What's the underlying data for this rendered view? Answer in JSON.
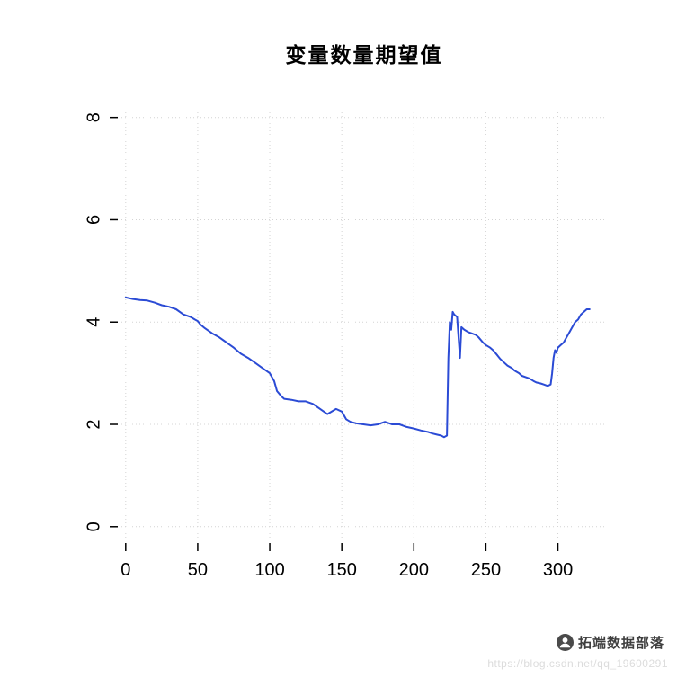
{
  "title": "变量数量期望值",
  "watermark": {
    "brand": "拓端数据部落",
    "logo_icon": "person-in-circle-icon",
    "url": "https://blog.csdn.net/qq_19600291"
  },
  "chart_data": {
    "type": "line",
    "title": "变量数量期望值",
    "xlabel": "",
    "ylabel": "",
    "xlim": [
      -3,
      334
    ],
    "ylim": [
      -0.25,
      8.1
    ],
    "x_ticks": [
      0,
      50,
      100,
      150,
      200,
      250,
      300
    ],
    "y_ticks": [
      0,
      2,
      4,
      6,
      8
    ],
    "grid": "dotted",
    "grid_color": "#d4d4d4",
    "tick_color": "#000000",
    "line_color": "#2b4bd5",
    "legend": "none",
    "series": [
      {
        "name": "变量数量期望值",
        "x": [
          0,
          5,
          10,
          15,
          20,
          25,
          30,
          35,
          40,
          45,
          48,
          50,
          52,
          55,
          60,
          65,
          70,
          75,
          80,
          85,
          90,
          95,
          100,
          103,
          105,
          108,
          110,
          115,
          120,
          125,
          130,
          135,
          140,
          143,
          146,
          150,
          153,
          156,
          160,
          165,
          170,
          175,
          180,
          185,
          190,
          195,
          200,
          205,
          210,
          213,
          216,
          219,
          221,
          223,
          224,
          225,
          226,
          227,
          228,
          230,
          232,
          233,
          235,
          238,
          240,
          243,
          245,
          248,
          250,
          253,
          255,
          258,
          260,
          263,
          265,
          268,
          270,
          273,
          275,
          278,
          280,
          283,
          285,
          288,
          290,
          293,
          295,
          296,
          297,
          298,
          299,
          300,
          302,
          304,
          306,
          308,
          310,
          312,
          314,
          316,
          318,
          320,
          322
        ],
        "y": [
          4.48,
          4.45,
          4.43,
          4.42,
          4.38,
          4.33,
          4.3,
          4.25,
          4.15,
          4.1,
          4.05,
          4.02,
          3.95,
          3.88,
          3.78,
          3.7,
          3.6,
          3.5,
          3.38,
          3.3,
          3.2,
          3.1,
          3.0,
          2.85,
          2.65,
          2.55,
          2.5,
          2.48,
          2.45,
          2.45,
          2.4,
          2.3,
          2.2,
          2.25,
          2.3,
          2.25,
          2.1,
          2.05,
          2.02,
          2.0,
          1.98,
          2.0,
          2.05,
          2.0,
          2.0,
          1.95,
          1.92,
          1.88,
          1.85,
          1.82,
          1.8,
          1.78,
          1.75,
          1.78,
          3.3,
          4.0,
          3.85,
          4.2,
          4.15,
          4.1,
          3.3,
          3.9,
          3.85,
          3.8,
          3.78,
          3.75,
          3.7,
          3.6,
          3.55,
          3.5,
          3.45,
          3.35,
          3.28,
          3.2,
          3.15,
          3.1,
          3.05,
          3.0,
          2.95,
          2.92,
          2.9,
          2.85,
          2.82,
          2.8,
          2.78,
          2.75,
          2.78,
          3.0,
          3.3,
          3.45,
          3.4,
          3.5,
          3.55,
          3.6,
          3.7,
          3.8,
          3.9,
          4.0,
          4.05,
          4.15,
          4.2,
          4.25,
          4.25
        ]
      }
    ]
  }
}
